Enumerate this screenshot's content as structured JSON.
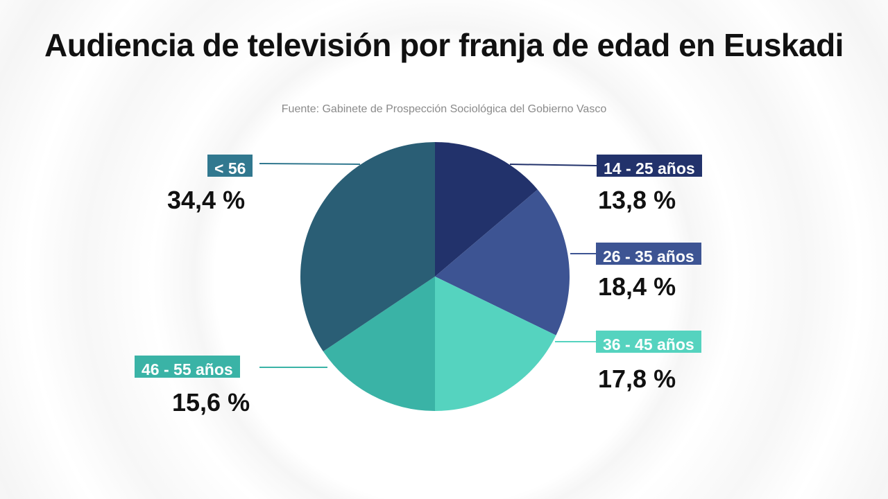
{
  "chart_data": {
    "type": "pie",
    "title": "Audiencia de televisión por franja de edad en Euskadi",
    "subtitle": "Fuente: Gabinete de Prospección Sociológica del Gobierno Vasco",
    "slices": [
      {
        "label": "14 - 25 años",
        "value": 13.8,
        "display": "13,8 %",
        "color": "#22326b",
        "label_color": "#22326b"
      },
      {
        "label": "26 - 35 años",
        "value": 18.4,
        "display": "18,4 %",
        "color": "#3d5493",
        "label_color": "#3d5493"
      },
      {
        "label": "36 - 45 años",
        "value": 17.8,
        "display": "17,8 %",
        "color": "#55d3bf",
        "label_color": "#55d3bf"
      },
      {
        "label": "46 - 55 años",
        "value": 15.6,
        "display": "15,6 %",
        "color": "#3ab3a6",
        "label_color": "#3ab3a6"
      },
      {
        "label": "< 56",
        "value": 34.4,
        "display": "34,4 %",
        "color": "#2a5e75",
        "label_color": "#31788f"
      }
    ]
  }
}
